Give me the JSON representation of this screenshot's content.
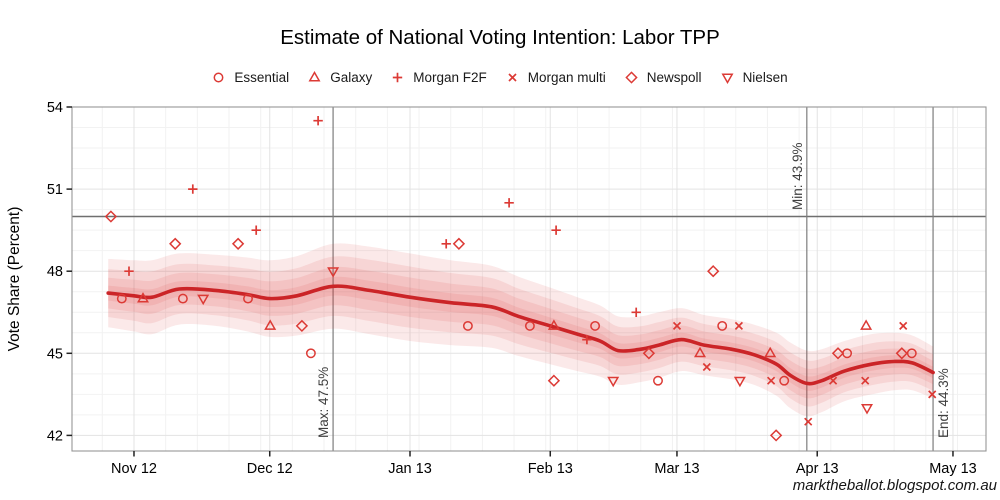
{
  "title": "Estimate of National Voting Intention: Labor TPP",
  "watermark": "marktheballot.blogspot.com.au",
  "chart_data": {
    "type": "scatter",
    "title": "Estimate of National Voting Intention: Labor TPP",
    "xlabel": "",
    "ylabel": "Vote Share (Percent)",
    "x_unit": "days since 1 Nov 2012",
    "xlim": [
      -13.7,
      188.3
    ],
    "ylim": [
      41.43,
      54.0
    ],
    "y_ticks": [
      42,
      45,
      48,
      51,
      54
    ],
    "y_minor_step": 0.75,
    "x_minor_step_days": 7,
    "grid": true,
    "legend_position": "top",
    "x_ticks": [
      {
        "label": "Nov 12",
        "t": 0
      },
      {
        "label": "Dec 12",
        "t": 30
      },
      {
        "label": "Jan 13",
        "t": 61
      },
      {
        "label": "Feb 13",
        "t": 92
      },
      {
        "label": "Mar 13",
        "t": 120
      },
      {
        "label": "Apr 13",
        "t": 151
      },
      {
        "label": "May 13",
        "t": 181
      }
    ],
    "reference_line_y": 50,
    "annotations": [
      {
        "label": "Max: 47.5%",
        "t": 44.0,
        "side": "left",
        "valign": "bottom"
      },
      {
        "label": "Min: 43.9%",
        "t": 148.7,
        "side": "left",
        "valign": "top"
      },
      {
        "label": "End: 44.3%",
        "t": 176.6,
        "side": "right",
        "valign": "bottom"
      }
    ],
    "series": [
      {
        "name": "Essential",
        "marker": "circle",
        "points": [
          [
            -2.7,
            47
          ],
          [
            10.8,
            47
          ],
          [
            25.2,
            47
          ],
          [
            39.1,
            45
          ],
          [
            73.8,
            46
          ],
          [
            87.5,
            46
          ],
          [
            101.9,
            46
          ],
          [
            115.8,
            44
          ],
          [
            130,
            46
          ],
          [
            143.7,
            44
          ],
          [
            157.6,
            45
          ],
          [
            171.9,
            45
          ]
        ]
      },
      {
        "name": "Galaxy",
        "marker": "triangle-up",
        "points": [
          [
            2,
            47
          ],
          [
            30.1,
            46
          ],
          [
            92.8,
            46
          ],
          [
            125.1,
            45
          ],
          [
            140.6,
            45
          ],
          [
            161.8,
            46
          ]
        ]
      },
      {
        "name": "Morgan F2F",
        "marker": "plus",
        "points": [
          [
            -1.1,
            48
          ],
          [
            13,
            51
          ],
          [
            27,
            49.5
          ],
          [
            40.7,
            53.5
          ],
          [
            69,
            49
          ],
          [
            82.9,
            50.5
          ],
          [
            93.3,
            49.5
          ],
          [
            100.1,
            45.5
          ],
          [
            111,
            46.5
          ]
        ]
      },
      {
        "name": "Morgan multi",
        "marker": "cross",
        "points": [
          [
            120,
            46
          ],
          [
            126.6,
            44.5
          ],
          [
            133.7,
            46
          ],
          [
            140.8,
            44
          ],
          [
            149,
            42.5
          ],
          [
            154.5,
            44
          ],
          [
            161.6,
            44
          ],
          [
            170,
            46
          ],
          [
            176.4,
            43.5
          ]
        ]
      },
      {
        "name": "Newspoll",
        "marker": "diamond",
        "points": [
          [
            -5.1,
            50
          ],
          [
            9.1,
            49
          ],
          [
            23,
            49
          ],
          [
            37.1,
            46
          ],
          [
            71.8,
            49
          ],
          [
            92.8,
            44
          ],
          [
            113.8,
            45
          ],
          [
            128,
            48
          ],
          [
            141.9,
            42
          ],
          [
            155.6,
            45
          ],
          [
            169.7,
            45
          ]
        ]
      },
      {
        "name": "Nielsen",
        "marker": "triangle-down",
        "points": [
          [
            15.3,
            47
          ],
          [
            44,
            48
          ],
          [
            105.9,
            44
          ],
          [
            133.9,
            44
          ],
          [
            162,
            43
          ]
        ]
      }
    ],
    "trend": [
      [
        -5.7,
        47.2,
        1.25
      ],
      [
        0,
        47.1,
        1.3
      ],
      [
        4,
        47.05,
        1.35
      ],
      [
        10,
        47.35,
        1.3
      ],
      [
        18,
        47.3,
        1.3
      ],
      [
        25,
        47.15,
        1.35
      ],
      [
        30,
        47.0,
        1.4
      ],
      [
        36,
        47.1,
        1.45
      ],
      [
        44,
        47.45,
        1.55
      ],
      [
        52,
        47.3,
        1.6
      ],
      [
        61,
        47.05,
        1.6
      ],
      [
        70,
        46.85,
        1.55
      ],
      [
        79,
        46.7,
        1.5
      ],
      [
        85,
        46.35,
        1.45
      ],
      [
        92,
        46.0,
        1.4
      ],
      [
        98,
        45.7,
        1.35
      ],
      [
        103,
        45.45,
        1.3
      ],
      [
        107,
        45.1,
        1.25
      ],
      [
        112,
        45.15,
        1.2
      ],
      [
        116,
        45.3,
        1.2
      ],
      [
        121,
        45.5,
        1.15
      ],
      [
        126,
        45.3,
        1.1
      ],
      [
        132,
        45.15,
        1.1
      ],
      [
        137,
        44.95,
        1.1
      ],
      [
        142,
        44.6,
        1.15
      ],
      [
        145,
        44.2,
        1.2
      ],
      [
        148.7,
        43.9,
        1.2
      ],
      [
        152,
        44.0,
        1.15
      ],
      [
        157,
        44.35,
        1.1
      ],
      [
        163,
        44.6,
        1.1
      ],
      [
        168,
        44.7,
        1.05
      ],
      [
        172,
        44.65,
        1.0
      ],
      [
        176.6,
        44.3,
        0.95
      ]
    ],
    "band_fractions": [
      1,
      0.7,
      0.45,
      0.22
    ],
    "colors": {
      "trend": "#cb2427",
      "marker": "#dc3a35",
      "ribbon": "#d9413c",
      "grid_major": "#e3e3e3",
      "grid_minor": "#f2f2f2",
      "panel_border": "#969696",
      "reference_line": "#6f6f6f",
      "annotation_line": "#7d7d7d",
      "annotation_text": "#3f3f3f"
    }
  }
}
